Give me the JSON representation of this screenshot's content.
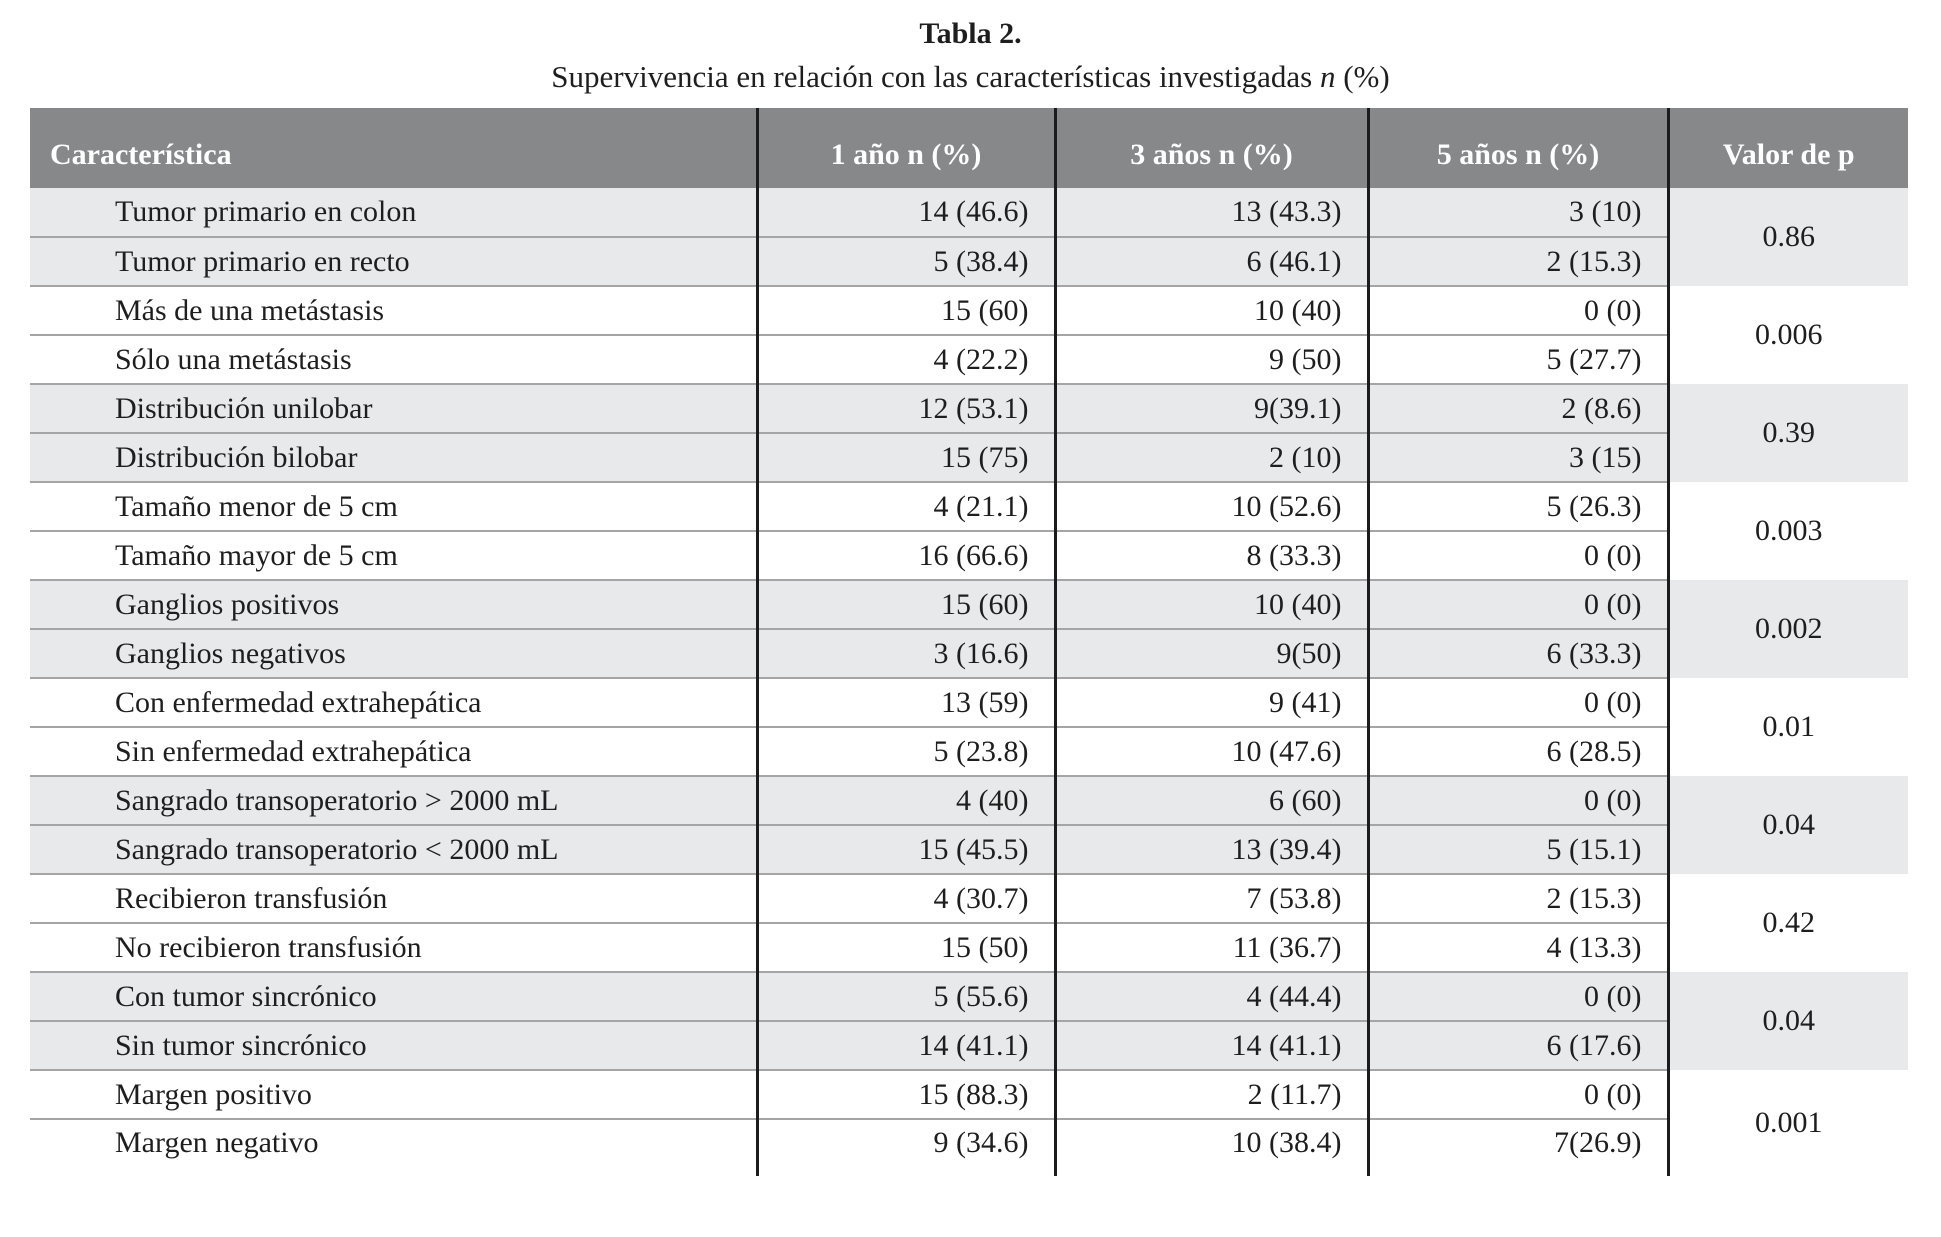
{
  "page": {
    "title": "Tabla 2.",
    "subtitle_prefix": "Supervivencia en relación con las características investigadas ",
    "subtitle_italic": "n",
    "subtitle_suffix": " (%)"
  },
  "colors": {
    "header_background": "#87888a",
    "header_text": "#ffffff",
    "row_shaded": "#e8e9ea",
    "row_plain": "#ffffff",
    "row_divider": "#a5a5a5",
    "column_divider": "#1c1c1c"
  },
  "table": {
    "headers": [
      "Característica",
      "1 año n (%)",
      "3 años n (%)",
      "5 años n (%)",
      "Valor de p"
    ],
    "groups": [
      {
        "p": "0.86",
        "shaded": true,
        "rows": [
          {
            "label": "Tumor primario en colon",
            "y1": "14 (46.6)",
            "y3": "13 (43.3)",
            "y5": "3 (10)"
          },
          {
            "label": "Tumor primario en recto",
            "y1": "5 (38.4)",
            "y3": "6 (46.1)",
            "y5": "2 (15.3)"
          }
        ]
      },
      {
        "p": "0.006",
        "shaded": false,
        "rows": [
          {
            "label": "Más de una metástasis",
            "y1": "15 (60)",
            "y3": "10 (40)",
            "y5": "0 (0)"
          },
          {
            "label": "Sólo una metástasis",
            "y1": "4 (22.2)",
            "y3": "9 (50)",
            "y5": "5 (27.7)"
          }
        ]
      },
      {
        "p": "0.39",
        "shaded": true,
        "rows": [
          {
            "label": "Distribución unilobar",
            "y1": "12 (53.1)",
            "y3": "9(39.1)",
            "y5": "2 (8.6)"
          },
          {
            "label": "Distribución bilobar",
            "y1": "15 (75)",
            "y3": "2 (10)",
            "y5": "3 (15)"
          }
        ]
      },
      {
        "p": "0.003",
        "shaded": false,
        "rows": [
          {
            "label": "Tamaño menor de 5 cm",
            "y1": "4 (21.1)",
            "y3": "10 (52.6)",
            "y5": "5 (26.3)"
          },
          {
            "label": "Tamaño mayor de 5 cm",
            "y1": "16 (66.6)",
            "y3": "8 (33.3)",
            "y5": "0 (0)"
          }
        ]
      },
      {
        "p": "0.002",
        "shaded": true,
        "rows": [
          {
            "label": "Ganglios positivos",
            "y1": "15 (60)",
            "y3": "10 (40)",
            "y5": "0 (0)"
          },
          {
            "label": "Ganglios negativos",
            "y1": "3 (16.6)",
            "y3": "9(50)",
            "y5": "6 (33.3)"
          }
        ]
      },
      {
        "p": "0.01",
        "shaded": false,
        "rows": [
          {
            "label": "Con enfermedad extrahepática",
            "y1": "13 (59)",
            "y3": "9 (41)",
            "y5": "0 (0)"
          },
          {
            "label": "Sin enfermedad extrahepática",
            "y1": "5 (23.8)",
            "y3": "10 (47.6)",
            "y5": "6 (28.5)"
          }
        ]
      },
      {
        "p": "0.04",
        "shaded": true,
        "rows": [
          {
            "label": "Sangrado transoperatorio > 2000 mL",
            "y1": "4 (40)",
            "y3": "6 (60)",
            "y5": "0 (0)"
          },
          {
            "label": "Sangrado transoperatorio < 2000 mL",
            "y1": "15 (45.5)",
            "y3": "13 (39.4)",
            "y5": "5 (15.1)"
          }
        ]
      },
      {
        "p": "0.42",
        "shaded": false,
        "rows": [
          {
            "label": "Recibieron transfusión",
            "y1": "4 (30.7)",
            "y3": "7 (53.8)",
            "y5": "2 (15.3)"
          },
          {
            "label": "No recibieron transfusión",
            "y1": "15 (50)",
            "y3": "11 (36.7)",
            "y5": "4 (13.3)"
          }
        ]
      },
      {
        "p": "0.04",
        "shaded": true,
        "rows": [
          {
            "label": "Con tumor sincrónico",
            "y1": "5 (55.6)",
            "y3": "4 (44.4)",
            "y5": "0 (0)"
          },
          {
            "label": "Sin tumor sincrónico",
            "y1": "14 (41.1)",
            "y3": "14 (41.1)",
            "y5": "6 (17.6)"
          }
        ]
      },
      {
        "p": "0.001",
        "shaded": false,
        "rows": [
          {
            "label": "Margen positivo",
            "y1": "15 (88.3)",
            "y3": "2 (11.7)",
            "y5": "0 (0)"
          },
          {
            "label": "Margen negativo",
            "y1": "9 (34.6)",
            "y3": "10 (38.4)",
            "y5": "7(26.9)"
          }
        ]
      }
    ]
  }
}
